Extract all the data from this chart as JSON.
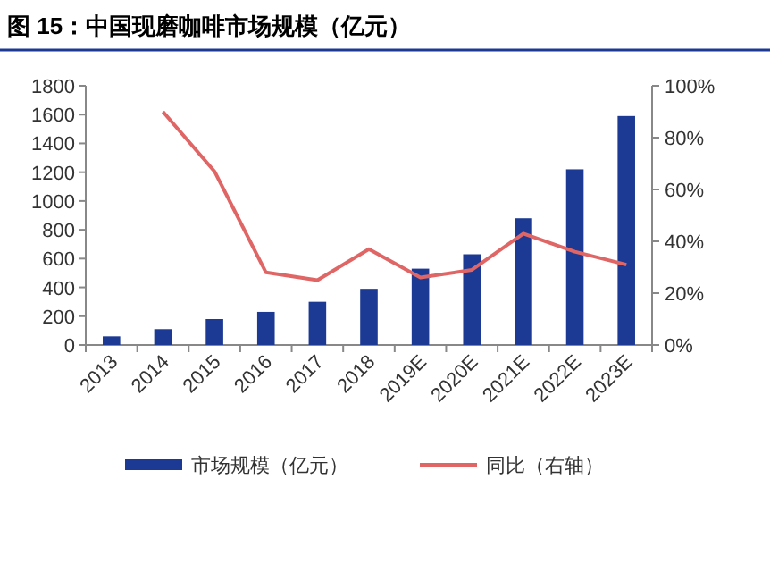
{
  "chart_data": {
    "type": "bar",
    "title": "图 15：中国现磨咖啡市场规模（亿元）",
    "categories": [
      "2013",
      "2014",
      "2015",
      "2016",
      "2017",
      "2018",
      "2019E",
      "2020E",
      "2021E",
      "2022E",
      "2023E"
    ],
    "series": [
      {
        "name": "市场规模（亿元）",
        "color": "#1c3a94",
        "values": [
          60,
          110,
          180,
          230,
          300,
          390,
          530,
          630,
          880,
          1220,
          1590
        ]
      },
      {
        "name": "同比（右轴）",
        "type": "line",
        "axis": "y2",
        "color": "#e06666",
        "values": [
          null,
          90,
          67,
          28,
          25,
          37,
          26,
          29,
          43,
          36,
          31
        ]
      }
    ],
    "ylim": [
      0,
      1800
    ],
    "yticks": [
      0,
      200,
      400,
      600,
      800,
      1000,
      1200,
      1400,
      1600,
      1800
    ],
    "y2lim": [
      0,
      100
    ],
    "y2ticks": [
      {
        "value": 0,
        "label": "0%"
      },
      {
        "value": 20,
        "label": "20%"
      },
      {
        "value": 40,
        "label": "40%"
      },
      {
        "value": 60,
        "label": "60%"
      },
      {
        "value": 80,
        "label": "80%"
      },
      {
        "value": 100,
        "label": "100%"
      }
    ],
    "grid": false,
    "legend": "bottom",
    "marker": "none",
    "line_style": "solid"
  }
}
